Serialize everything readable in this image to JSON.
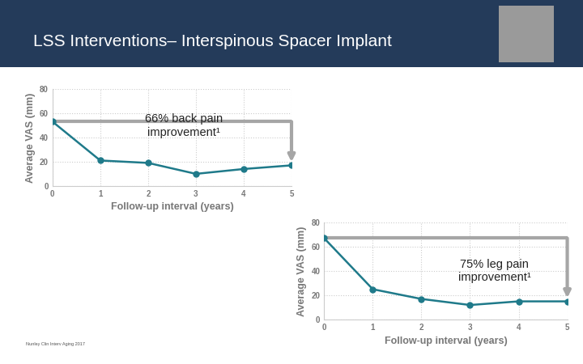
{
  "title": "LSS Interventions– Interspinous Spacer Implant",
  "source": "Nunley Clin Interv Aging 2017",
  "chart_data": [
    {
      "type": "line",
      "x": [
        0,
        1,
        2,
        3,
        4,
        5
      ],
      "values": [
        53,
        21,
        19,
        10,
        14,
        17
      ],
      "color": "#1f7a8a",
      "marker": "o",
      "xlim": [
        0,
        5
      ],
      "ylim": [
        0,
        80
      ],
      "xticks": [
        0,
        1,
        2,
        3,
        4,
        5
      ],
      "yticks": [
        0,
        20,
        40,
        60,
        80
      ],
      "xlabel": "Follow-up interval (years)",
      "ylabel": "Average VAS (mm)",
      "annotation": "66% back pain\nimprovement¹",
      "grid": true
    },
    {
      "type": "line",
      "x": [
        0,
        1,
        2,
        3,
        4,
        5
      ],
      "values": [
        67,
        25,
        17,
        12,
        15,
        15
      ],
      "color": "#1f7a8a",
      "marker": "o",
      "xlim": [
        0,
        5
      ],
      "ylim": [
        0,
        80
      ],
      "xticks": [
        0,
        1,
        2,
        3,
        4,
        5
      ],
      "yticks": [
        0,
        20,
        40,
        60,
        80
      ],
      "xlabel": "Follow-up interval (years)",
      "ylabel": "Average VAS (mm)",
      "annotation": "75% leg pain\nimprovement¹",
      "grid": true
    }
  ]
}
